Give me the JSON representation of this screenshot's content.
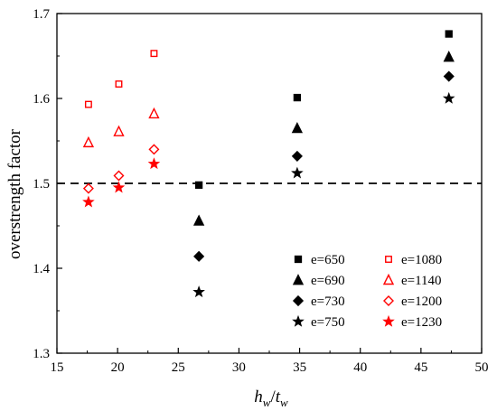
{
  "chart_data": {
    "type": "scatter",
    "title": "",
    "xlabel": {
      "main": "h",
      "sub1": "w",
      "slash": "/",
      "main2": "t",
      "sub2": "w"
    },
    "ylabel": "overstrength factor",
    "xlim": [
      15,
      50
    ],
    "ylim": [
      1.3,
      1.7
    ],
    "x_ticks": [
      15,
      20,
      25,
      30,
      35,
      40,
      45,
      50
    ],
    "x_tick_labels": [
      "15",
      "20",
      "25",
      "30",
      "35",
      "40",
      "45",
      "50"
    ],
    "y_ticks": [
      1.3,
      1.4,
      1.5,
      1.6,
      1.7
    ],
    "y_tick_labels": [
      "1.3",
      "1.4",
      "1.5",
      "1.6",
      "1.7"
    ],
    "grid": false,
    "reference_line": {
      "y": 1.5,
      "style": "dashed",
      "color": "#000000"
    },
    "legend_position": "lower-right",
    "series": [
      {
        "name": "e=650",
        "marker": "square-filled",
        "color": "#000000",
        "points": [
          [
            26.7,
            1.498
          ],
          [
            34.8,
            1.601
          ],
          [
            47.3,
            1.676
          ]
        ]
      },
      {
        "name": "e=690",
        "marker": "triangle-filled",
        "color": "#000000",
        "points": [
          [
            26.7,
            1.456
          ],
          [
            34.8,
            1.565
          ],
          [
            47.3,
            1.649
          ]
        ]
      },
      {
        "name": "e=730",
        "marker": "diamond-filled",
        "color": "#000000",
        "points": [
          [
            26.7,
            1.414
          ],
          [
            34.8,
            1.532
          ],
          [
            47.3,
            1.626
          ]
        ]
      },
      {
        "name": "e=750",
        "marker": "star-filled",
        "color": "#000000",
        "points": [
          [
            26.7,
            1.372
          ],
          [
            34.8,
            1.512
          ],
          [
            47.3,
            1.6
          ]
        ]
      },
      {
        "name": "e=1080",
        "marker": "square-open",
        "color": "#ff0000",
        "points": [
          [
            17.6,
            1.593
          ],
          [
            20.1,
            1.617
          ],
          [
            23.0,
            1.653
          ]
        ]
      },
      {
        "name": "e=1140",
        "marker": "triangle-open",
        "color": "#ff0000",
        "points": [
          [
            17.6,
            1.548
          ],
          [
            20.1,
            1.561
          ],
          [
            23.0,
            1.582
          ]
        ]
      },
      {
        "name": "e=1200",
        "marker": "diamond-open",
        "color": "#ff0000",
        "points": [
          [
            17.6,
            1.494
          ],
          [
            20.1,
            1.509
          ],
          [
            23.0,
            1.54
          ]
        ]
      },
      {
        "name": "e=1230",
        "marker": "star-filled",
        "color": "#ff0000",
        "points": [
          [
            17.6,
            1.478
          ],
          [
            20.1,
            1.495
          ],
          [
            23.0,
            1.523
          ]
        ]
      }
    ]
  }
}
